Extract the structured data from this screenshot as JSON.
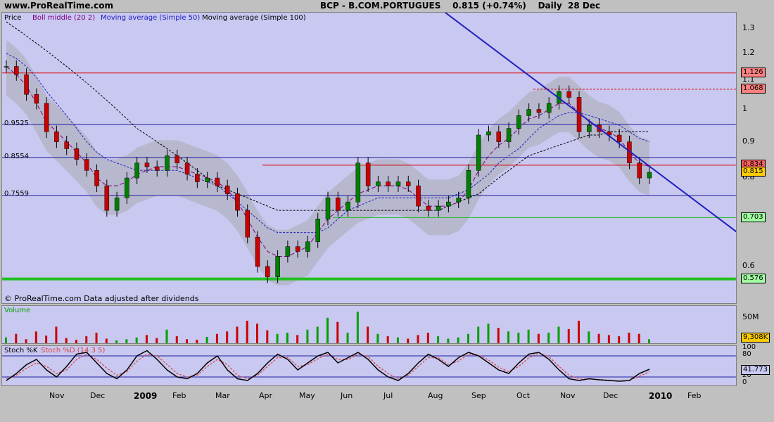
{
  "header": {
    "site": "www.ProRealTime.com",
    "title": "BCP - B.COM.PORTUGUES    0.815 (+0.74%)    Daily  28 Dec"
  },
  "price_legend": {
    "price": "Price",
    "boll": "Boll middle (20 2)",
    "ma50": "Moving average (Simple 50)",
    "ma100": "Moving average (Simple 100)"
  },
  "volume_legend": "Volume",
  "stoch_legend": {
    "k": "Stoch %K",
    "d": "Stoch %D (14 3 5)"
  },
  "watermark": "© ProRealTime.com  Data adjusted after dividends",
  "left_levels": [
    "0.9525",
    "0.8554",
    "0.7559"
  ],
  "colors": {
    "panel_bg": "#c8c8f0",
    "bollinger_band": "#b4b4c8",
    "up_candle": "#008000",
    "down_candle": "#cc0000",
    "trendline": "#2020c0",
    "red_level": "#e00000",
    "green_support": "#20c020",
    "volume_bar": "#00a000",
    "volume_down": "#cc0000"
  },
  "chart_data": [
    {
      "type": "line",
      "title": "BCP - B.COM.PORTUGUES",
      "subtitle": "0.815 (+0.74%) Daily 28 Dec",
      "x_tick_labels": [
        "Nov",
        "Dec",
        "2009",
        "Feb",
        "Mar",
        "Apr",
        "May",
        "Jun",
        "Jul",
        "Aug",
        "Sep",
        "Oct",
        "Nov",
        "Dec",
        "2010",
        "Feb"
      ],
      "y_tick_labels": [
        "1.3",
        "1.2",
        "1.1",
        "1",
        "0.9",
        "0.8",
        "0.6"
      ],
      "ylim": [
        0.53,
        1.37
      ],
      "y_scale": "log",
      "price_tags": [
        "1.126",
        "1.068",
        "0.834",
        "0.815",
        "0.703",
        "0.576"
      ],
      "horizontal_levels": [
        1.126,
        1.068,
        0.9525,
        0.8554,
        0.834,
        0.7559,
        0.703,
        0.576
      ],
      "series": [
        {
          "name": "Price",
          "values": [
            1.15,
            1.12,
            1.05,
            1.02,
            0.93,
            0.9,
            0.88,
            0.85,
            0.82,
            0.78,
            0.72,
            0.75,
            0.8,
            0.84,
            0.83,
            0.82,
            0.86,
            0.84,
            0.81,
            0.79,
            0.8,
            0.78,
            0.76,
            0.72,
            0.66,
            0.6,
            0.58,
            0.62,
            0.64,
            0.63,
            0.65,
            0.7,
            0.75,
            0.72,
            0.74,
            0.84,
            0.78,
            0.79,
            0.78,
            0.79,
            0.78,
            0.73,
            0.72,
            0.73,
            0.74,
            0.75,
            0.82,
            0.92,
            0.93,
            0.9,
            0.94,
            0.98,
            1.0,
            0.99,
            1.02,
            1.06,
            1.04,
            0.93,
            0.95,
            0.93,
            0.92,
            0.9,
            0.84,
            0.8,
            0.815
          ]
        },
        {
          "name": "Boll middle (20 2)",
          "values": [
            1.15,
            1.12,
            1.08,
            1.02,
            0.96,
            0.93,
            0.9,
            0.87,
            0.84,
            0.8,
            0.78,
            0.78,
            0.79,
            0.81,
            0.82,
            0.83,
            0.83,
            0.83,
            0.82,
            0.81,
            0.8,
            0.79,
            0.77,
            0.74,
            0.7,
            0.66,
            0.63,
            0.62,
            0.62,
            0.63,
            0.64,
            0.67,
            0.7,
            0.72,
            0.74,
            0.76,
            0.77,
            0.78,
            0.78,
            0.78,
            0.77,
            0.75,
            0.73,
            0.73,
            0.73,
            0.74,
            0.77,
            0.82,
            0.86,
            0.89,
            0.91,
            0.94,
            0.97,
            0.98,
            1.0,
            1.02,
            1.02,
            0.99,
            0.96,
            0.94,
            0.93,
            0.91,
            0.87,
            0.84,
            0.83
          ]
        },
        {
          "name": "Moving average (Simple 50)",
          "values": [
            1.2,
            1.18,
            1.15,
            1.11,
            1.06,
            1.02,
            0.98,
            0.94,
            0.9,
            0.87,
            0.85,
            0.84,
            0.83,
            0.82,
            0.82,
            0.82,
            0.82,
            0.82,
            0.81,
            0.8,
            0.79,
            0.78,
            0.76,
            0.74,
            0.72,
            0.7,
            0.68,
            0.67,
            0.67,
            0.67,
            0.67,
            0.67,
            0.68,
            0.7,
            0.72,
            0.73,
            0.74,
            0.75,
            0.75,
            0.75,
            0.75,
            0.75,
            0.75,
            0.75,
            0.75,
            0.76,
            0.77,
            0.79,
            0.81,
            0.84,
            0.86,
            0.88,
            0.91,
            0.94,
            0.96,
            0.98,
            0.99,
            0.99,
            0.98,
            0.97,
            0.96,
            0.95,
            0.93,
            0.91,
            0.9
          ]
        },
        {
          "name": "Moving average (Simple 100)",
          "values": [
            1.33,
            1.3,
            1.27,
            1.24,
            1.21,
            1.18,
            1.15,
            1.12,
            1.09,
            1.06,
            1.03,
            1.0,
            0.97,
            0.94,
            0.92,
            0.9,
            0.88,
            0.86,
            0.84,
            0.82,
            0.8,
            0.78,
            0.77,
            0.76,
            0.75,
            0.74,
            0.73,
            0.72,
            0.72,
            0.72,
            0.72,
            0.72,
            0.72,
            0.72,
            0.72,
            0.72,
            0.72,
            0.72,
            0.72,
            0.72,
            0.72,
            0.72,
            0.72,
            0.72,
            0.73,
            0.74,
            0.75,
            0.76,
            0.78,
            0.8,
            0.82,
            0.84,
            0.86,
            0.87,
            0.88,
            0.89,
            0.9,
            0.91,
            0.92,
            0.92,
            0.93,
            0.93,
            0.93,
            0.93,
            0.93
          ]
        }
      ],
      "trendline": {
        "x": [
          "Oct",
          "Feb"
        ],
        "y": [
          1.37,
          0.67
        ]
      }
    },
    {
      "type": "bar",
      "title": "Volume",
      "y_tick_labels": [
        "50M"
      ],
      "current_value": "9,308K",
      "values": [
        12,
        18,
        9,
        22,
        15,
        30,
        11,
        8,
        14,
        20,
        10,
        7,
        9,
        12,
        16,
        11,
        25,
        14,
        9,
        8,
        13,
        18,
        22,
        30,
        40,
        35,
        24,
        18,
        20,
        16,
        25,
        30,
        45,
        38,
        20,
        55,
        30,
        18,
        14,
        12,
        10,
        16,
        20,
        14,
        10,
        12,
        18,
        30,
        35,
        28,
        22,
        20,
        25,
        18,
        20,
        30,
        26,
        40,
        22,
        18,
        16,
        14,
        20,
        18,
        9
      ]
    },
    {
      "type": "line",
      "title": "Stoch %K",
      "y_tick_labels": [
        "100",
        "80",
        "20",
        "0"
      ],
      "ylim": [
        0,
        100
      ],
      "current_value": "41.773",
      "series": [
        {
          "name": "Stoch %K",
          "values": [
            10,
            30,
            55,
            70,
            40,
            20,
            50,
            85,
            90,
            60,
            30,
            15,
            40,
            80,
            95,
            70,
            40,
            20,
            15,
            30,
            60,
            80,
            40,
            15,
            10,
            30,
            60,
            85,
            70,
            40,
            60,
            80,
            90,
            60,
            75,
            90,
            70,
            40,
            20,
            10,
            30,
            60,
            85,
            70,
            50,
            75,
            90,
            80,
            60,
            40,
            30,
            60,
            85,
            90,
            70,
            40,
            15,
            10,
            15,
            12,
            10,
            8,
            10,
            30,
            42
          ]
        },
        {
          "name": "Stoch %D (14 3 5)",
          "values": [
            15,
            25,
            45,
            60,
            50,
            30,
            40,
            70,
            85,
            70,
            45,
            25,
            35,
            65,
            85,
            80,
            55,
            30,
            20,
            25,
            50,
            70,
            55,
            25,
            15,
            25,
            50,
            75,
            75,
            50,
            55,
            72,
            85,
            70,
            70,
            85,
            78,
            50,
            30,
            15,
            25,
            50,
            75,
            75,
            55,
            65,
            85,
            82,
            68,
            48,
            35,
            50,
            75,
            88,
            78,
            50,
            25,
            14,
            14,
            13,
            11,
            9,
            10,
            22,
            35
          ]
        }
      ]
    }
  ]
}
